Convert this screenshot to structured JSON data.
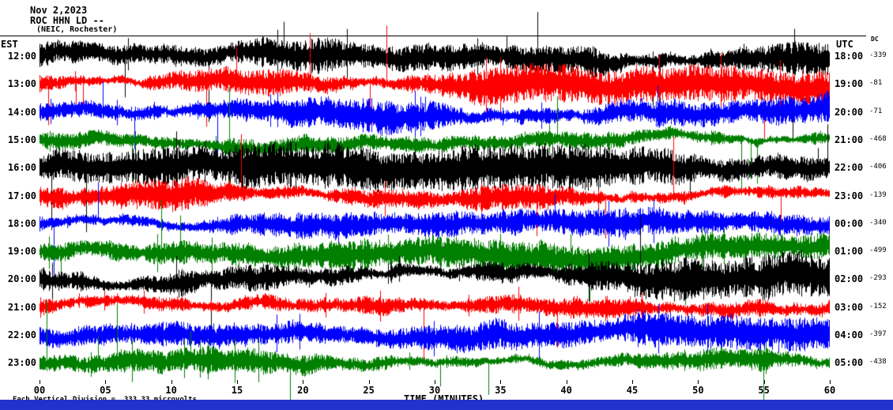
{
  "header": {
    "date": "Nov 2,2023",
    "station": "ROC HHN LD --",
    "location": "(NEIC, Rochester)"
  },
  "axes": {
    "left_header": "EST",
    "right_header": "UTC",
    "dc_header": "DC",
    "x_axis_label": "TIME (MINUTES)"
  },
  "footnote": {
    "prefix": "x",
    "text": "Each Vertical Division =  333.33 microvolts"
  },
  "colors": {
    "background": "#ffffff",
    "trace_black": "#000000",
    "trace_red": "#ff0000",
    "trace_blue": "#0000ff",
    "trace_green": "#007f00",
    "bottom_bar": "#2233cc"
  },
  "chart_data": {
    "type": "line",
    "description": "Helicorder (webicorder) display: 12 one-hour rows of continuous seismic noise traces, one row per hour, 0-60 minutes per row",
    "xlabel": "TIME (MINUTES)",
    "x_range_minutes": [
      0,
      60
    ],
    "x_ticks": [
      "00",
      "05",
      "10",
      "15",
      "20",
      "25",
      "30",
      "35",
      "40",
      "45",
      "50",
      "55",
      "60"
    ],
    "vertical_division_microvolts": 333.33,
    "rows": [
      {
        "est": "12:00",
        "utc": "18:00",
        "dc": "-339",
        "color": "#000000"
      },
      {
        "est": "13:00",
        "utc": "19:00",
        "dc": "-81",
        "color": "#ff0000"
      },
      {
        "est": "14:00",
        "utc": "20:00",
        "dc": "-71",
        "color": "#0000ff"
      },
      {
        "est": "15:00",
        "utc": "21:00",
        "dc": "-468",
        "color": "#007f00"
      },
      {
        "est": "16:00",
        "utc": "22:00",
        "dc": "-406",
        "color": "#000000"
      },
      {
        "est": "17:00",
        "utc": "23:00",
        "dc": "-139",
        "color": "#ff0000"
      },
      {
        "est": "18:00",
        "utc": "00:00",
        "dc": "-340",
        "color": "#0000ff"
      },
      {
        "est": "19:00",
        "utc": "01:00",
        "dc": "-499",
        "color": "#007f00"
      },
      {
        "est": "20:00",
        "utc": "02:00",
        "dc": "-293",
        "color": "#000000"
      },
      {
        "est": "21:00",
        "utc": "03:00",
        "dc": "-152",
        "color": "#ff0000"
      },
      {
        "est": "22:00",
        "utc": "04:00",
        "dc": "-397",
        "color": "#0000ff"
      },
      {
        "est": "23:00",
        "utc": "05:00",
        "dc": "-438",
        "color": "#007f00"
      }
    ]
  }
}
